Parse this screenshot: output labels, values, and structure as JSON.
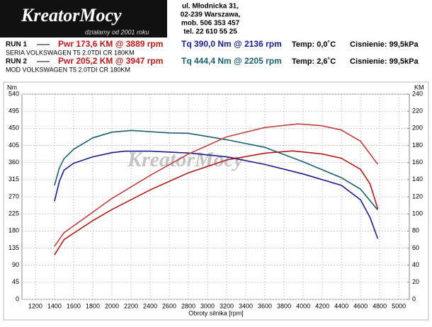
{
  "header": {
    "logo": "KreatorMocy",
    "slogan": "działamy od 2001 roku",
    "address": [
      "ul. Młodnicka 31,",
      "02-239  Warszawa,",
      "mob.  506 353 457",
      "tel.  22 610 55 25"
    ]
  },
  "runs": [
    {
      "label": "RUN 1",
      "pwr": "Pwr  173,6 KM @ 3889 rpm",
      "tq": "Tq 390,0 Nm @ 2136 rpm",
      "temp": "Temp: 0,0˚C",
      "press": "Cisnienie: 99,5kPa",
      "car": "SERIA VOLKSWAGEN T5 2.0TDI CR 180KM"
    },
    {
      "label": "RUN 2",
      "pwr": "Pwr  205,2 KM @ 3947 rpm",
      "tq": "Tq 444,4 Nm @ 2205 rpm",
      "temp": "Temp: 2,6˚C",
      "press": "Cisnienie: 99,5kPa",
      "car": "MOD VOLKSWAGEN T5 2.0TDI CR 180KM"
    }
  ],
  "chart_data": {
    "type": "line",
    "xlabel": "Obroty silnika [rpm]",
    "ylabel": "Nm",
    "y2label": "KM",
    "xlim": [
      1060,
      5110
    ],
    "xticks": [
      1200,
      1400,
      1600,
      1800,
      2000,
      2200,
      2400,
      2600,
      2800,
      3000,
      3200,
      3400,
      3600,
      3800,
      4000,
      4200,
      4400,
      4600,
      4800,
      5000
    ],
    "ylim": [
      0,
      540
    ],
    "yticks": [
      0,
      45,
      90,
      135,
      180,
      225,
      270,
      315,
      360,
      405,
      450,
      495,
      540
    ],
    "y2lim": [
      0,
      240
    ],
    "y2ticks": [
      0,
      20,
      40,
      60,
      80,
      100,
      120,
      140,
      160,
      180,
      200,
      220,
      240
    ],
    "grid": true,
    "series": [
      {
        "color": "#1a1a8c",
        "x": [
          1400,
          1450,
          1500,
          1600,
          1800,
          2000,
          2136,
          2400,
          2800,
          3200,
          3600,
          4000,
          4400,
          4600,
          4700,
          4780
        ],
        "values": [
          258,
          310,
          340,
          358,
          375,
          386,
          390,
          390,
          385,
          375,
          355,
          330,
          300,
          262,
          215,
          160
        ]
      },
      {
        "color": "#1a6070",
        "x": [
          1400,
          1450,
          1500,
          1600,
          1800,
          2000,
          2205,
          2600,
          2800,
          3200,
          3600,
          4000,
          4400,
          4600,
          4780
        ],
        "values": [
          300,
          345,
          370,
          395,
          425,
          440,
          444.4,
          438,
          437,
          420,
          400,
          362,
          320,
          290,
          235
        ]
      },
      {
        "color": "#b01818",
        "axis": "y2",
        "x": [
          1400,
          1500,
          1800,
          2000,
          2400,
          2800,
          3200,
          3600,
          3889,
          4200,
          4400,
          4600,
          4700,
          4780
        ],
        "values": [
          52,
          70,
          92,
          105,
          128,
          148,
          163,
          171,
          173.6,
          170,
          165,
          152,
          135,
          106
        ]
      },
      {
        "color": "#c04040",
        "axis": "y2",
        "x": [
          1400,
          1500,
          2000,
          2400,
          2800,
          3200,
          3600,
          3947,
          4200,
          4400,
          4600,
          4780
        ],
        "values": [
          62,
          78,
          118,
          145,
          170,
          190,
          201,
          205.2,
          203,
          198,
          185,
          158
        ]
      }
    ]
  }
}
